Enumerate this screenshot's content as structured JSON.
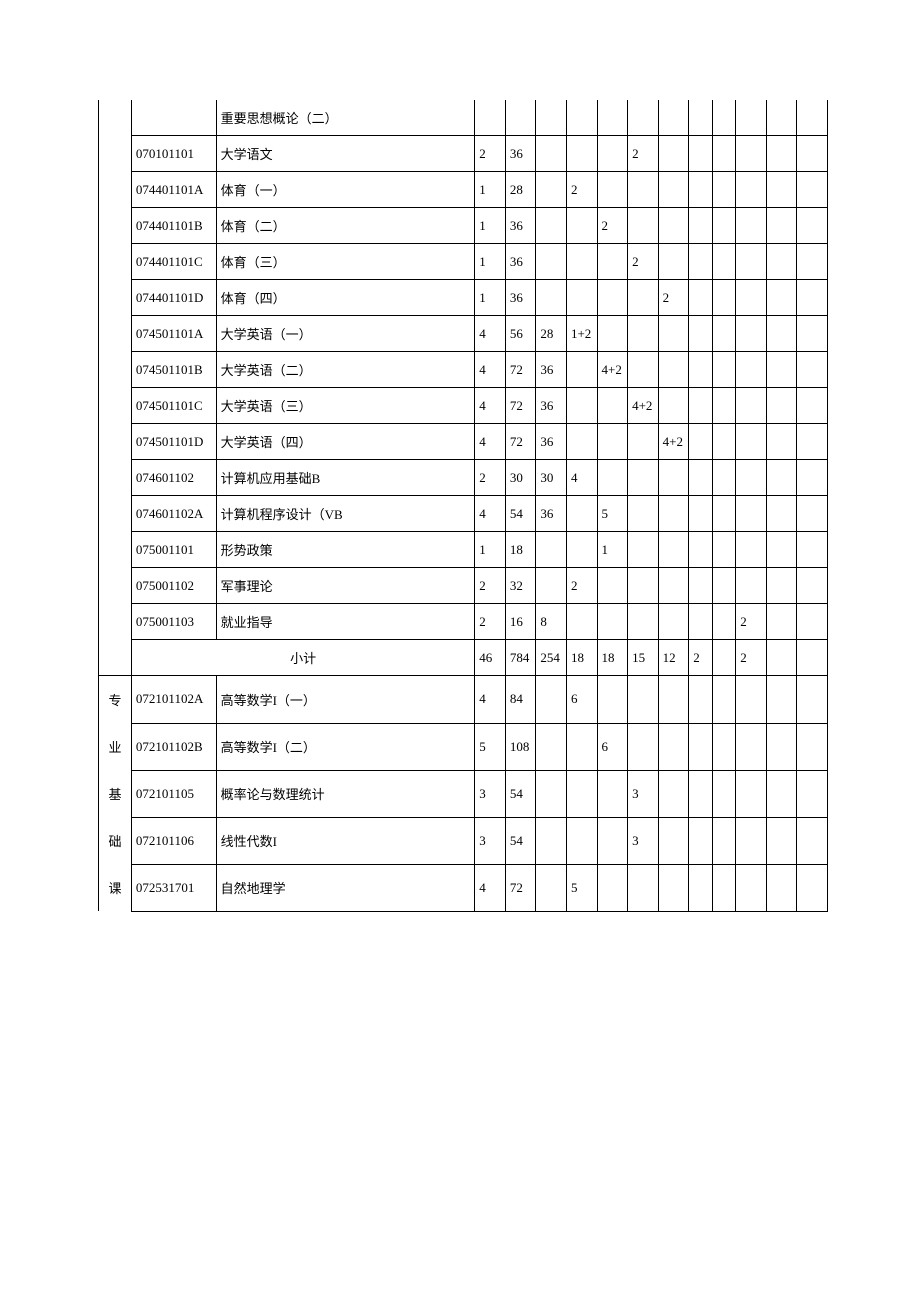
{
  "rows": [
    {
      "code": "",
      "name": "重要思想概论（二）",
      "c1": "",
      "c2": "",
      "c3": "",
      "c4": "",
      "c5": "",
      "c6": "",
      "c7": "",
      "c8": "",
      "c9": "",
      "c10": "",
      "c11": "",
      "c12": ""
    },
    {
      "code": "070101101",
      "name": "大学语文",
      "c1": "2",
      "c2": "36",
      "c3": "",
      "c4": "",
      "c5": "",
      "c6": "2",
      "c7": "",
      "c8": "",
      "c9": "",
      "c10": "",
      "c11": "",
      "c12": ""
    },
    {
      "code": "074401101A",
      "name": "体育（一）",
      "c1": "1",
      "c2": "28",
      "c3": "",
      "c4": "2",
      "c5": "",
      "c6": "",
      "c7": "",
      "c8": "",
      "c9": "",
      "c10": "",
      "c11": "",
      "c12": ""
    },
    {
      "code": "074401101B",
      "name": "体育（二）",
      "c1": "1",
      "c2": "36",
      "c3": "",
      "c4": "",
      "c5": "2",
      "c6": "",
      "c7": "",
      "c8": "",
      "c9": "",
      "c10": "",
      "c11": "",
      "c12": ""
    },
    {
      "code": "074401101C",
      "name": "体育（三）",
      "c1": "1",
      "c2": "36",
      "c3": "",
      "c4": "",
      "c5": "",
      "c6": "2",
      "c7": "",
      "c8": "",
      "c9": "",
      "c10": "",
      "c11": "",
      "c12": ""
    },
    {
      "code": "074401101D",
      "name": "体育（四）",
      "c1": "1",
      "c2": "36",
      "c3": "",
      "c4": "",
      "c5": "",
      "c6": "",
      "c7": "2",
      "c8": "",
      "c9": "",
      "c10": "",
      "c11": "",
      "c12": ""
    },
    {
      "code": "074501101A",
      "name": "大学英语（一）",
      "c1": "4",
      "c2": "56",
      "c3": "28",
      "c4": "1+2",
      "c5": "",
      "c6": "",
      "c7": "",
      "c8": "",
      "c9": "",
      "c10": "",
      "c11": "",
      "c12": ""
    },
    {
      "code": "074501101B",
      "name": "大学英语（二）",
      "c1": "4",
      "c2": "72",
      "c3": "36",
      "c4": "",
      "c5": "4+2",
      "c6": "",
      "c7": "",
      "c8": "",
      "c9": "",
      "c10": "",
      "c11": "",
      "c12": ""
    },
    {
      "code": "074501101C",
      "name": "大学英语（三）",
      "c1": "4",
      "c2": "72",
      "c3": "36",
      "c4": "",
      "c5": "",
      "c6": "4+2",
      "c7": "",
      "c8": "",
      "c9": "",
      "c10": "",
      "c11": "",
      "c12": ""
    },
    {
      "code": "074501101D",
      "name": "大学英语（四）",
      "c1": "4",
      "c2": "72",
      "c3": "36",
      "c4": "",
      "c5": "",
      "c6": "",
      "c7": "4+2",
      "c8": "",
      "c9": "",
      "c10": "",
      "c11": "",
      "c12": ""
    },
    {
      "code": "074601102",
      "name": "计算机应用基础B",
      "c1": "2",
      "c2": "30",
      "c3": "30",
      "c4": "4",
      "c5": "",
      "c6": "",
      "c7": "",
      "c8": "",
      "c9": "",
      "c10": "",
      "c11": "",
      "c12": ""
    },
    {
      "code": "074601102A",
      "name": "计算机程序设计（VB",
      "c1": "4",
      "c2": "54",
      "c3": "36",
      "c4": "",
      "c5": "5",
      "c6": "",
      "c7": "",
      "c8": "",
      "c9": "",
      "c10": "",
      "c11": "",
      "c12": ""
    },
    {
      "code": "075001101",
      "name": "形势政策",
      "c1": "1",
      "c2": "18",
      "c3": "",
      "c4": "",
      "c5": "1",
      "c6": "",
      "c7": "",
      "c8": "",
      "c9": "",
      "c10": "",
      "c11": "",
      "c12": ""
    },
    {
      "code": "075001102",
      "name": "军事理论",
      "c1": "2",
      "c2": "32",
      "c3": "",
      "c4": "2",
      "c5": "",
      "c6": "",
      "c7": "",
      "c8": "",
      "c9": "",
      "c10": "",
      "c11": "",
      "c12": ""
    },
    {
      "code": "075001103",
      "name": "就业指导",
      "c1": "2",
      "c2": "16",
      "c3": "8",
      "c4": "",
      "c5": "",
      "c6": "",
      "c7": "",
      "c8": "",
      "c9": "",
      "c10": "2",
      "c11": "",
      "c12": ""
    }
  ],
  "subtotal": {
    "label": "小计",
    "c1": "46",
    "c2": "784",
    "c3": "254",
    "c4": "18",
    "c5": "18",
    "c6": "15",
    "c7": "12",
    "c8": "2",
    "c9": "",
    "c10": "2",
    "c11": "",
    "c12": ""
  },
  "section2": {
    "cats": [
      "专",
      "业",
      "基",
      "础",
      "课"
    ],
    "rows": [
      {
        "code": "072101102A",
        "name": "高等数学I（一）",
        "c1": "4",
        "c2": "84",
        "c3": "",
        "c4": "6",
        "c5": "",
        "c6": "",
        "c7": "",
        "c8": "",
        "c9": "",
        "c10": "",
        "c11": "",
        "c12": ""
      },
      {
        "code": "072101102B",
        "name": "高等数学I（二）",
        "c1": "5",
        "c2": "108",
        "c3": "",
        "c4": "",
        "c5": "6",
        "c6": "",
        "c7": "",
        "c8": "",
        "c9": "",
        "c10": "",
        "c11": "",
        "c12": ""
      },
      {
        "code": "072101105",
        "name": "概率论与数理统计",
        "c1": "3",
        "c2": "54",
        "c3": "",
        "c4": "",
        "c5": "",
        "c6": "3",
        "c7": "",
        "c8": "",
        "c9": "",
        "c10": "",
        "c11": "",
        "c12": ""
      },
      {
        "code": "072101106",
        "name": "线性代数I",
        "c1": "3",
        "c2": "54",
        "c3": "",
        "c4": "",
        "c5": "",
        "c6": "3",
        "c7": "",
        "c8": "",
        "c9": "",
        "c10": "",
        "c11": "",
        "c12": ""
      },
      {
        "code": "072531701",
        "name": "自然地理学",
        "c1": "4",
        "c2": "72",
        "c3": "",
        "c4": "5",
        "c5": "",
        "c6": "",
        "c7": "",
        "c8": "",
        "c9": "",
        "c10": "",
        "c11": "",
        "c12": ""
      }
    ]
  }
}
